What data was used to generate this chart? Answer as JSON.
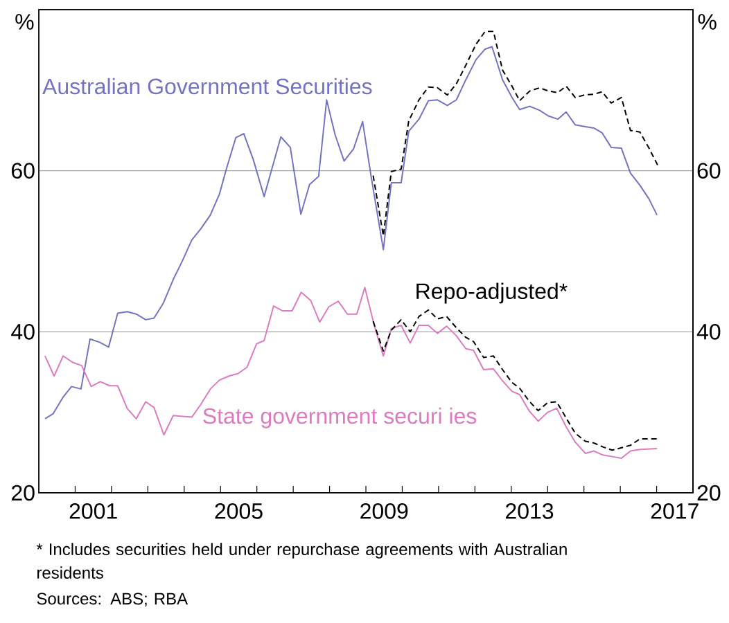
{
  "chart_data": {
    "type": "line",
    "ylabel": "%",
    "y2label": "%",
    "xlim": [
      2000,
      2018
    ],
    "xticks": [
      {
        "value": 2001,
        "label": null
      },
      {
        "value": 2002,
        "label": null
      },
      {
        "value": 2003,
        "label": null
      },
      {
        "value": 2004,
        "label": null
      },
      {
        "value": 2005,
        "label": null
      },
      {
        "value": 2006,
        "label": null
      },
      {
        "value": 2007,
        "label": null
      },
      {
        "value": 2008,
        "label": null
      },
      {
        "value": 2009,
        "label": null
      },
      {
        "value": 2010,
        "label": null
      },
      {
        "value": 2011,
        "label": null
      },
      {
        "value": 2012,
        "label": null
      },
      {
        "value": 2013,
        "label": null
      },
      {
        "value": 2014,
        "label": null
      },
      {
        "value": 2015,
        "label": null
      },
      {
        "value": 2016,
        "label": null
      },
      {
        "value": 2017,
        "label": null
      },
      {
        "value": 2001.5,
        "label": "2001"
      },
      {
        "value": 2005.5,
        "label": "2005"
      },
      {
        "value": 2009.5,
        "label": "2009"
      },
      {
        "value": 2013.5,
        "label": "2013"
      },
      {
        "value": 2017.5,
        "label": "2017"
      }
    ],
    "ylim": [
      20,
      80
    ],
    "yticks": [
      20,
      40,
      60
    ],
    "y2lim": [
      20,
      80
    ],
    "y2ticks": [
      20,
      40,
      60
    ],
    "grid": "y",
    "marker": "none",
    "series": [
      {
        "name": "Australian Government Securities",
        "color": "#7373c2",
        "line_style": "solid",
        "x": [
          2000.17,
          2000.39,
          2000.67,
          2000.9,
          2001.16,
          2001.41,
          2001.67,
          2001.92,
          2002.17,
          2002.43,
          2002.68,
          2002.94,
          2003.17,
          2003.42,
          2003.7,
          2003.95,
          2004.21,
          2004.46,
          2004.72,
          2004.97,
          2005.16,
          2005.42,
          2005.64,
          2005.9,
          2006.2,
          2006.66,
          2006.92,
          2007.21,
          2007.45,
          2007.7,
          2007.92,
          2008.15,
          2008.4,
          2008.66,
          2008.91,
          2009.14,
          2009.48,
          2009.7,
          2009.97,
          2010.18,
          2010.46,
          2010.72,
          2010.97,
          2011.24,
          2011.49,
          2011.75,
          2012.03,
          2012.28,
          2012.47,
          2012.76,
          2013.02,
          2013.23,
          2013.51,
          2013.78,
          2014.02,
          2014.28,
          2014.51,
          2014.76,
          2015.01,
          2015.27,
          2015.5,
          2015.75,
          2016.03,
          2016.28,
          2016.54,
          2016.79,
          2017.01
        ],
        "values": [
          29.2,
          29.8,
          31.9,
          33.2,
          32.9,
          39.1,
          38.7,
          38.1,
          42.3,
          42.5,
          42.2,
          41.5,
          41.7,
          43.5,
          46.5,
          48.8,
          51.4,
          52.8,
          54.5,
          57.1,
          60.2,
          64.1,
          64.6,
          61.4,
          56.8,
          64.2,
          62.9,
          54.6,
          58.3,
          59.3,
          68.8,
          64.5,
          61.2,
          62.7,
          66.1,
          59.4,
          50.2,
          58.5,
          58.5,
          64.9,
          66.4,
          68.7,
          68.8,
          68.1,
          68.8,
          71.3,
          73.8,
          75.1,
          75.4,
          71.3,
          69.1,
          67.6,
          68.0,
          67.5,
          66.8,
          66.4,
          67.3,
          65.7,
          65.5,
          65.3,
          64.7,
          62.9,
          62.8,
          59.7,
          58.2,
          56.5,
          54.5
        ]
      },
      {
        "color": "#000000",
        "line_style": "dashed",
        "x": [
          2009.2,
          2009.48,
          2009.7,
          2009.97,
          2010.18,
          2010.46,
          2010.72,
          2010.97,
          2011.24,
          2011.49,
          2011.75,
          2012.03,
          2012.28,
          2012.51,
          2012.76,
          2013.02,
          2013.23,
          2013.51,
          2013.78,
          2014.02,
          2014.28,
          2014.51,
          2014.76,
          2015.01,
          2015.27,
          2015.5,
          2015.75,
          2016.03,
          2016.28,
          2016.54,
          2016.79,
          2017.05
        ],
        "values": [
          59.4,
          51.9,
          59.9,
          60.2,
          66.2,
          68.8,
          70.4,
          70.3,
          69.4,
          70.8,
          73.1,
          75.7,
          77.3,
          77.3,
          72.5,
          70.5,
          68.7,
          69.9,
          70.3,
          69.9,
          69.7,
          70.5,
          69.1,
          69.4,
          69.5,
          69.8,
          68.4,
          69.1,
          65.0,
          64.8,
          62.8,
          60.5
        ]
      },
      {
        "name": "State government securi ies",
        "color": "#dd7bbf",
        "line_style": "solid",
        "x": [
          2000.17,
          2000.42,
          2000.67,
          2000.93,
          2001.18,
          2001.44,
          2001.69,
          2001.95,
          2002.17,
          2002.43,
          2002.68,
          2002.94,
          2003.17,
          2003.44,
          2003.7,
          2004.21,
          2004.46,
          2004.72,
          2004.97,
          2005.23,
          2005.48,
          2005.73,
          2005.99,
          2006.2,
          2006.46,
          2006.71,
          2006.97,
          2007.22,
          2007.48,
          2007.73,
          2007.98,
          2008.24,
          2008.49,
          2008.75,
          2008.97,
          2009.23,
          2009.48,
          2009.7,
          2009.97,
          2010.22,
          2010.46,
          2010.72,
          2010.97,
          2011.22,
          2011.49,
          2011.75,
          2011.96,
          2012.24,
          2012.51,
          2012.76,
          2013.02,
          2013.23,
          2013.49,
          2013.74,
          2014.0,
          2014.25,
          2014.51,
          2014.76,
          2015.04,
          2015.27,
          2015.52,
          2015.78,
          2016.03,
          2016.28,
          2016.54,
          2017.01
        ],
        "values": [
          37.0,
          34.5,
          37.0,
          36.2,
          35.8,
          33.2,
          33.8,
          33.3,
          33.3,
          30.5,
          29.2,
          31.3,
          30.6,
          27.2,
          29.6,
          29.4,
          31.0,
          32.9,
          34.0,
          34.5,
          34.8,
          35.6,
          38.5,
          38.9,
          43.2,
          42.6,
          42.6,
          44.9,
          43.9,
          41.2,
          43.1,
          43.8,
          42.2,
          42.2,
          45.5,
          40.8,
          37.0,
          40.4,
          40.8,
          38.6,
          40.8,
          40.8,
          39.8,
          40.7,
          39.5,
          37.9,
          37.7,
          35.3,
          35.4,
          33.9,
          32.6,
          32.2,
          30.2,
          28.9,
          30.0,
          30.5,
          28.2,
          26.3,
          24.9,
          25.2,
          24.7,
          24.5,
          24.3,
          25.2,
          25.4,
          25.5
        ]
      },
      {
        "name": "Repo-adjusted*",
        "color": "#000000",
        "line_style": "dashed",
        "x": [
          2009.2,
          2009.48,
          2009.7,
          2009.97,
          2010.22,
          2010.46,
          2010.72,
          2010.97,
          2011.22,
          2011.49,
          2011.75,
          2011.96,
          2012.24,
          2012.51,
          2012.76,
          2013.02,
          2013.23,
          2013.49,
          2013.74,
          2014.0,
          2014.25,
          2014.51,
          2014.76,
          2015.04,
          2015.27,
          2015.52,
          2015.78,
          2016.03,
          2016.28,
          2016.54,
          2017.01
        ],
        "values": [
          41.3,
          37.6,
          40.2,
          41.5,
          40.0,
          41.9,
          42.7,
          41.6,
          41.9,
          40.5,
          39.3,
          38.8,
          36.8,
          37.0,
          35.3,
          33.7,
          33.0,
          31.4,
          30.2,
          31.2,
          31.3,
          29.3,
          27.4,
          26.4,
          26.2,
          25.7,
          25.3,
          25.6,
          25.9,
          26.7,
          26.7
        ]
      }
    ],
    "annotations": [
      "* Includes securities held under repurchase agreements with Australian residents",
      "Sources: ABS; RBA"
    ]
  }
}
